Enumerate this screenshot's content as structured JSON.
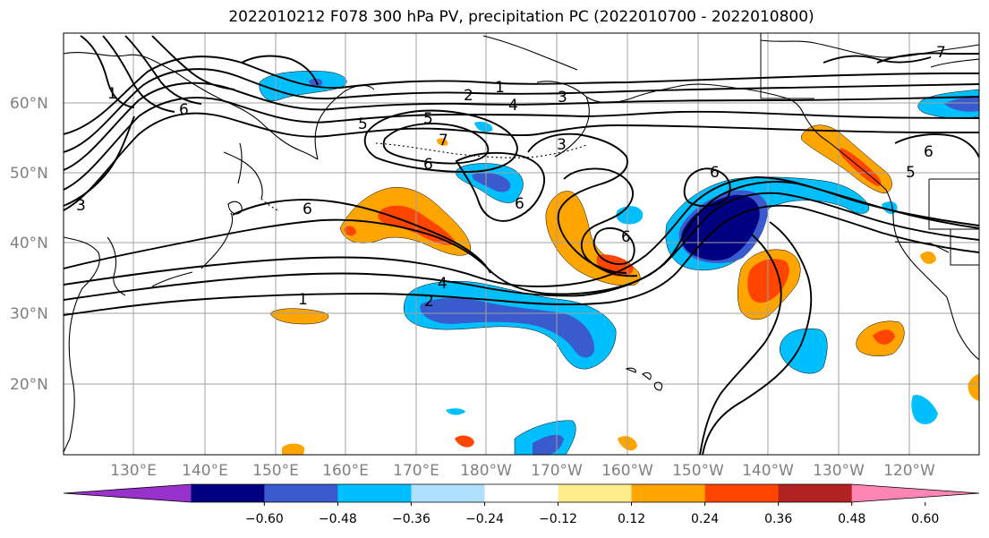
{
  "title": "2022010212 F078 300 hPa PV, precipitation PC (2022010700 - 2022010800)",
  "lat_labels": [
    "60°N",
    "50°N",
    "40°N",
    "30°N",
    "20°N"
  ],
  "lon_labels": [
    "130°E",
    "140°E",
    "150°E",
    "160°E",
    "170°E",
    "180°W",
    "170°W",
    "160°W",
    "150°W",
    "140°W",
    "130°W",
    "120°W"
  ],
  "pv_contour_labels": [
    "1",
    "2",
    "3",
    "4",
    "5",
    "6",
    "7",
    "1",
    "2",
    "3",
    "4",
    "5",
    "6",
    "6",
    "6",
    "6",
    "6",
    "6",
    "5",
    "3",
    "7",
    "1",
    "6",
    "5",
    "2"
  ],
  "colorbar": {
    "tick_labels": [
      "−0.60",
      "−0.48",
      "−0.36",
      "−0.24",
      "−0.12",
      "0.12",
      "0.24",
      "0.36",
      "0.48",
      "0.60"
    ],
    "colors": [
      "#9932cc",
      "#000080",
      "#3a5bcd",
      "#00bfff",
      "#b0e0ff",
      "#ffffff",
      "#ffec8b",
      "#ffa500",
      "#ff4500",
      "#b22222",
      "#ff85b4"
    ]
  },
  "colors": {
    "grid": "#a0a0a0",
    "coast": "#000000",
    "axis_label": "#808080"
  }
}
